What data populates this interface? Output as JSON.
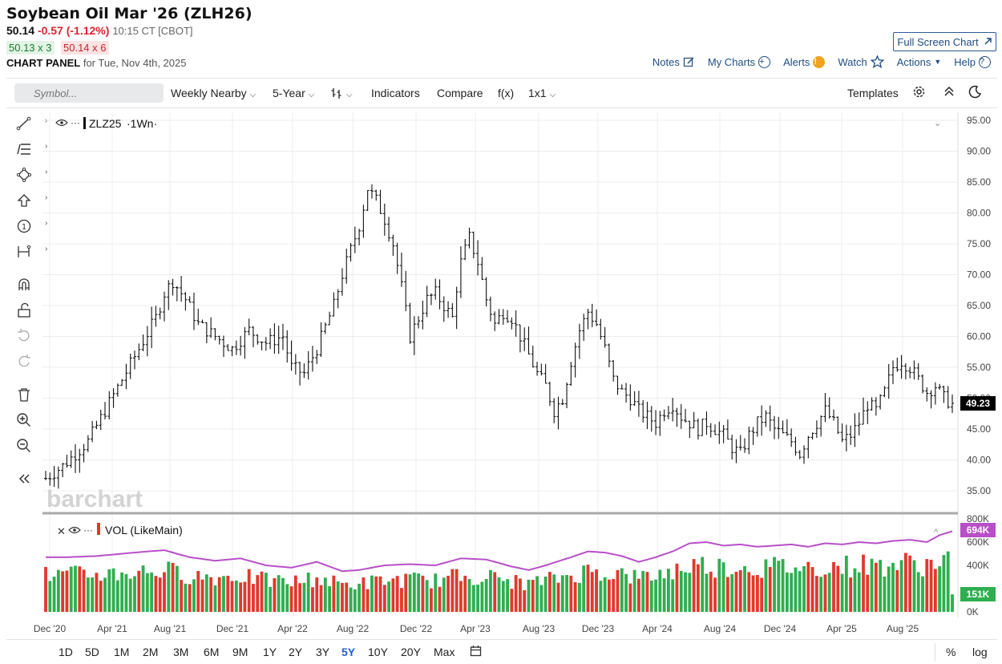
{
  "header": {
    "title": "Soybean Oil Mar '26 (ZLH26)",
    "last": "50.14",
    "change": "-0.57 (-1.12%)",
    "time": "10:15 CT [CBOT]",
    "bid": "50.13 x 3",
    "ask": "50.14 x 6",
    "panel_label": "CHART PANEL",
    "panel_date": "for Tue, Nov 4th, 2025",
    "fullscreen_label": "Full Screen Chart"
  },
  "top_links": {
    "notes": "Notes",
    "my_charts": "My Charts",
    "alerts": "Alerts",
    "watch": "Watch",
    "actions": "Actions",
    "help": "Help"
  },
  "toolbar": {
    "search_placeholder": "Symbol...",
    "period": "Weekly Nearby",
    "range": "5-Year",
    "indicators": "Indicators",
    "compare": "Compare",
    "fx": "f(x)",
    "layout": "1x1",
    "templates": "Templates"
  },
  "chart": {
    "symbol_label": "ZLZ25",
    "interval_label": "·1Wn·",
    "volume_label": "VOL (LikeMain)",
    "watermark": "barchart",
    "last_price_tag": "49.23",
    "volume_tag": "694K",
    "volume_bar_tag": "151K",
    "colors": {
      "up": "#2eae4f",
      "down": "#e0392b",
      "ma": "#b84fc8",
      "price": "#111111"
    }
  },
  "chart_data": {
    "type": "ohlc",
    "price_axis": [
      "95.00",
      "90.00",
      "85.00",
      "80.00",
      "75.00",
      "70.00",
      "65.00",
      "60.00",
      "55.00",
      "50.00",
      "45.00",
      "40.00",
      "35.00"
    ],
    "volume_axis": [
      "800K",
      "600K",
      "400K",
      "0K"
    ],
    "x_labels": [
      "Dec '20",
      "Apr '21",
      "Aug '21",
      "Dec '21",
      "Apr '22",
      "Aug '22",
      "Dec '22",
      "Apr '23",
      "Aug '23",
      "Dec '23",
      "Apr '24",
      "Aug '24",
      "Dec '24",
      "Apr '25",
      "Aug '25"
    ],
    "ylim": [
      34,
      96
    ],
    "price_path": [
      [
        0,
        37
      ],
      [
        4,
        39
      ],
      [
        10,
        43
      ],
      [
        14,
        48
      ],
      [
        18,
        53
      ],
      [
        22,
        58
      ],
      [
        26,
        63
      ],
      [
        28,
        67
      ],
      [
        30,
        69
      ],
      [
        33,
        66
      ],
      [
        36,
        62
      ],
      [
        40,
        60
      ],
      [
        44,
        58
      ],
      [
        48,
        61
      ],
      [
        52,
        59
      ],
      [
        56,
        60
      ],
      [
        58,
        55
      ],
      [
        61,
        54
      ],
      [
        64,
        58
      ],
      [
        68,
        65
      ],
      [
        70,
        70
      ],
      [
        72,
        74
      ],
      [
        74,
        78
      ],
      [
        76,
        84
      ],
      [
        78,
        82
      ],
      [
        80,
        79
      ],
      [
        82,
        75
      ],
      [
        84,
        68
      ],
      [
        86,
        60
      ],
      [
        88,
        63
      ],
      [
        90,
        66
      ],
      [
        92,
        67
      ],
      [
        94,
        65
      ],
      [
        96,
        63
      ],
      [
        97,
        68
      ],
      [
        98,
        72
      ],
      [
        100,
        76
      ],
      [
        102,
        72
      ],
      [
        104,
        66
      ],
      [
        106,
        62
      ],
      [
        108,
        64
      ],
      [
        110,
        63
      ],
      [
        112,
        60
      ],
      [
        114,
        57
      ],
      [
        116,
        54
      ],
      [
        118,
        52
      ],
      [
        120,
        48
      ],
      [
        122,
        50
      ],
      [
        124,
        56
      ],
      [
        126,
        61
      ],
      [
        128,
        64
      ],
      [
        130,
        62
      ],
      [
        132,
        58
      ],
      [
        134,
        53
      ],
      [
        136,
        51
      ],
      [
        138,
        50
      ],
      [
        140,
        48
      ],
      [
        142,
        47
      ],
      [
        144,
        46
      ],
      [
        146,
        48
      ],
      [
        148,
        49
      ],
      [
        150,
        47
      ],
      [
        152,
        46
      ],
      [
        154,
        45
      ],
      [
        156,
        46
      ],
      [
        158,
        45
      ],
      [
        160,
        44
      ],
      [
        162,
        42
      ],
      [
        164,
        41
      ],
      [
        166,
        44
      ],
      [
        168,
        46
      ],
      [
        170,
        47
      ],
      [
        172,
        45
      ],
      [
        174,
        44
      ],
      [
        176,
        43
      ],
      [
        178,
        41
      ],
      [
        180,
        44
      ],
      [
        182,
        46
      ],
      [
        184,
        48
      ],
      [
        186,
        46
      ],
      [
        188,
        43
      ],
      [
        190,
        44
      ],
      [
        192,
        46
      ],
      [
        194,
        49
      ],
      [
        196,
        48
      ],
      [
        198,
        51
      ],
      [
        200,
        55
      ],
      [
        202,
        56
      ],
      [
        204,
        55
      ],
      [
        206,
        53
      ],
      [
        208,
        51
      ],
      [
        210,
        52
      ],
      [
        212,
        50
      ],
      [
        214,
        49
      ]
    ],
    "volume_ma": [
      [
        0,
        470
      ],
      [
        5,
        470
      ],
      [
        12,
        480
      ],
      [
        18,
        500
      ],
      [
        24,
        520
      ],
      [
        28,
        530
      ],
      [
        34,
        470
      ],
      [
        40,
        440
      ],
      [
        46,
        460
      ],
      [
        52,
        400
      ],
      [
        58,
        380
      ],
      [
        64,
        430
      ],
      [
        70,
        350
      ],
      [
        74,
        360
      ],
      [
        80,
        400
      ],
      [
        86,
        410
      ],
      [
        92,
        400
      ],
      [
        98,
        460
      ],
      [
        104,
        450
      ],
      [
        110,
        390
      ],
      [
        114,
        360
      ],
      [
        118,
        400
      ],
      [
        124,
        470
      ],
      [
        128,
        520
      ],
      [
        132,
        510
      ],
      [
        136,
        480
      ],
      [
        140,
        430
      ],
      [
        144,
        470
      ],
      [
        148,
        520
      ],
      [
        152,
        590
      ],
      [
        156,
        600
      ],
      [
        160,
        570
      ],
      [
        164,
        580
      ],
      [
        168,
        560
      ],
      [
        172,
        570
      ],
      [
        176,
        580
      ],
      [
        180,
        560
      ],
      [
        184,
        590
      ],
      [
        188,
        580
      ],
      [
        192,
        600
      ],
      [
        196,
        590
      ],
      [
        200,
        610
      ],
      [
        204,
        620
      ],
      [
        208,
        600
      ],
      [
        211,
        660
      ],
      [
        214,
        694
      ]
    ],
    "volume_ylim": [
      0,
      800
    ],
    "last_price": 49.23,
    "last_volume_ma": 694,
    "last_volume": 151
  },
  "ranges": [
    "1D",
    "5D",
    "1M",
    "2M",
    "3M",
    "6M",
    "9M",
    "1Y",
    "2Y",
    "3Y",
    "5Y",
    "10Y",
    "20Y",
    "Max"
  ],
  "active_range": "5Y",
  "bottom_right": {
    "percent": "%",
    "log": "log"
  }
}
